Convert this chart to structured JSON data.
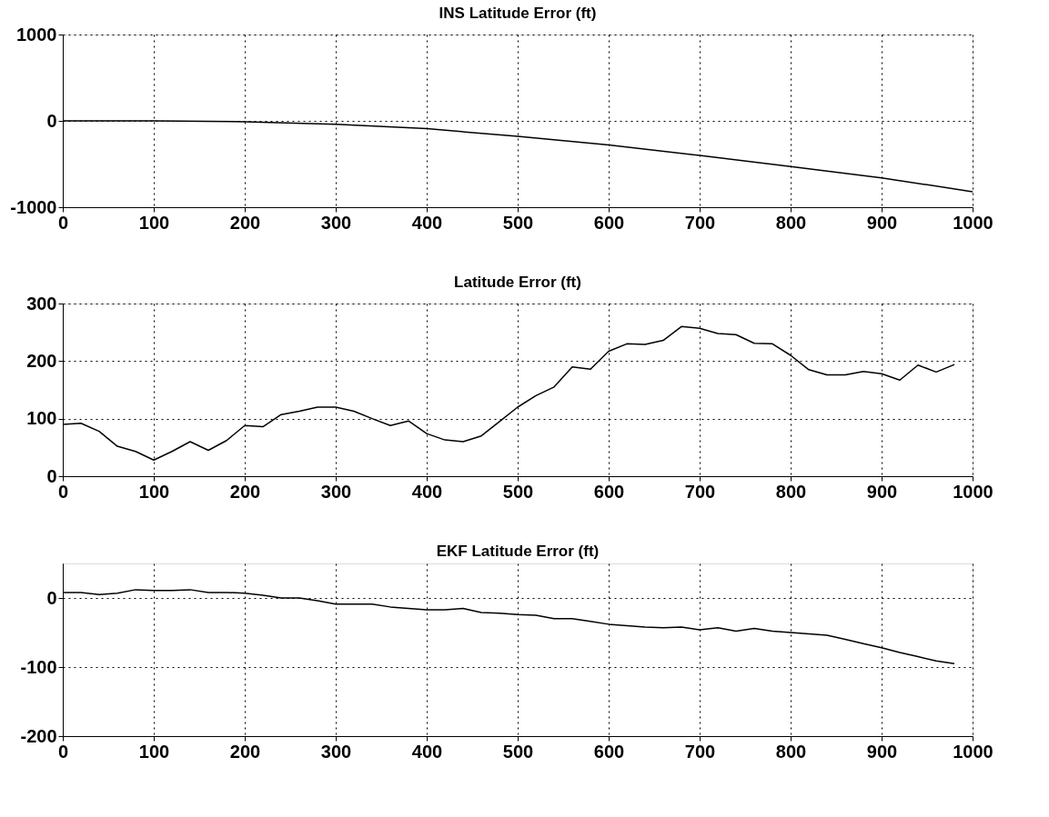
{
  "chart_data": [
    {
      "type": "line",
      "title": "INS Latitude Error (ft)",
      "x": [
        0,
        100,
        200,
        300,
        400,
        500,
        600,
        700,
        800,
        900,
        1000
      ],
      "values": [
        0,
        0,
        -10,
        -40,
        -90,
        -180,
        -280,
        -400,
        -530,
        -660,
        -820
      ],
      "color": "#000000",
      "xlim": [
        0,
        1000
      ],
      "xticks": [
        0,
        100,
        200,
        300,
        400,
        500,
        600,
        700,
        800,
        900,
        1000
      ],
      "ylim": [
        -1000,
        1000
      ],
      "yticks": [
        -1000,
        0,
        1000
      ],
      "grid": true,
      "line_style": "solid"
    },
    {
      "type": "line",
      "title": "Latitude Error (ft)",
      "x": [
        0,
        20,
        40,
        60,
        80,
        100,
        120,
        140,
        160,
        180,
        200,
        220,
        240,
        260,
        280,
        300,
        320,
        340,
        360,
        380,
        400,
        420,
        440,
        460,
        480,
        500,
        520,
        540,
        560,
        580,
        600,
        620,
        640,
        660,
        680,
        700,
        720,
        740,
        760,
        780,
        800,
        820,
        840,
        860,
        880,
        900,
        920,
        940,
        960,
        980
      ],
      "values": [
        90,
        92,
        78,
        52,
        43,
        28,
        43,
        60,
        45,
        62,
        88,
        86,
        107,
        113,
        120,
        120,
        113,
        100,
        88,
        96,
        74,
        63,
        60,
        70,
        95,
        120,
        140,
        155,
        190,
        186,
        217,
        230,
        229,
        236,
        260,
        257,
        248,
        246,
        231,
        230,
        210,
        185,
        176,
        176,
        182,
        178,
        167,
        193,
        181,
        194
      ],
      "color": "#000000",
      "xlim": [
        0,
        1000
      ],
      "xticks": [
        0,
        100,
        200,
        300,
        400,
        500,
        600,
        700,
        800,
        900,
        1000
      ],
      "ylim": [
        0,
        300
      ],
      "yticks": [
        0,
        100,
        200,
        300
      ],
      "grid": true,
      "line_style": "solid"
    },
    {
      "type": "line",
      "title": "EKF Latitude Error (ft)",
      "x": [
        0,
        20,
        40,
        60,
        80,
        100,
        120,
        140,
        160,
        180,
        200,
        220,
        240,
        260,
        280,
        300,
        320,
        340,
        360,
        380,
        400,
        420,
        440,
        460,
        480,
        500,
        520,
        540,
        560,
        580,
        600,
        620,
        640,
        660,
        680,
        700,
        720,
        740,
        760,
        780,
        800,
        820,
        840,
        860,
        880,
        900,
        920,
        940,
        960,
        980
      ],
      "values": [
        8,
        8,
        5,
        7,
        12,
        11,
        11,
        12,
        8,
        8,
        7,
        4,
        0,
        0,
        -4,
        -9,
        -9,
        -9,
        -13,
        -15,
        -17,
        -17,
        -15,
        -21,
        -22,
        -24,
        -25,
        -30,
        -30,
        -34,
        -38,
        -40,
        -42,
        -43,
        -42,
        -46,
        -43,
        -48,
        -44,
        -48,
        -50,
        -52,
        -54,
        -60,
        -66,
        -72,
        -79,
        -85,
        -91,
        -95
      ],
      "color": "#000000",
      "xlim": [
        0,
        1000
      ],
      "xticks": [
        0,
        100,
        200,
        300,
        400,
        500,
        600,
        700,
        800,
        900,
        1000
      ],
      "ylim": [
        -200,
        50
      ],
      "yticks": [
        -200,
        -100,
        0
      ],
      "grid": true,
      "line_style": "solid"
    }
  ]
}
